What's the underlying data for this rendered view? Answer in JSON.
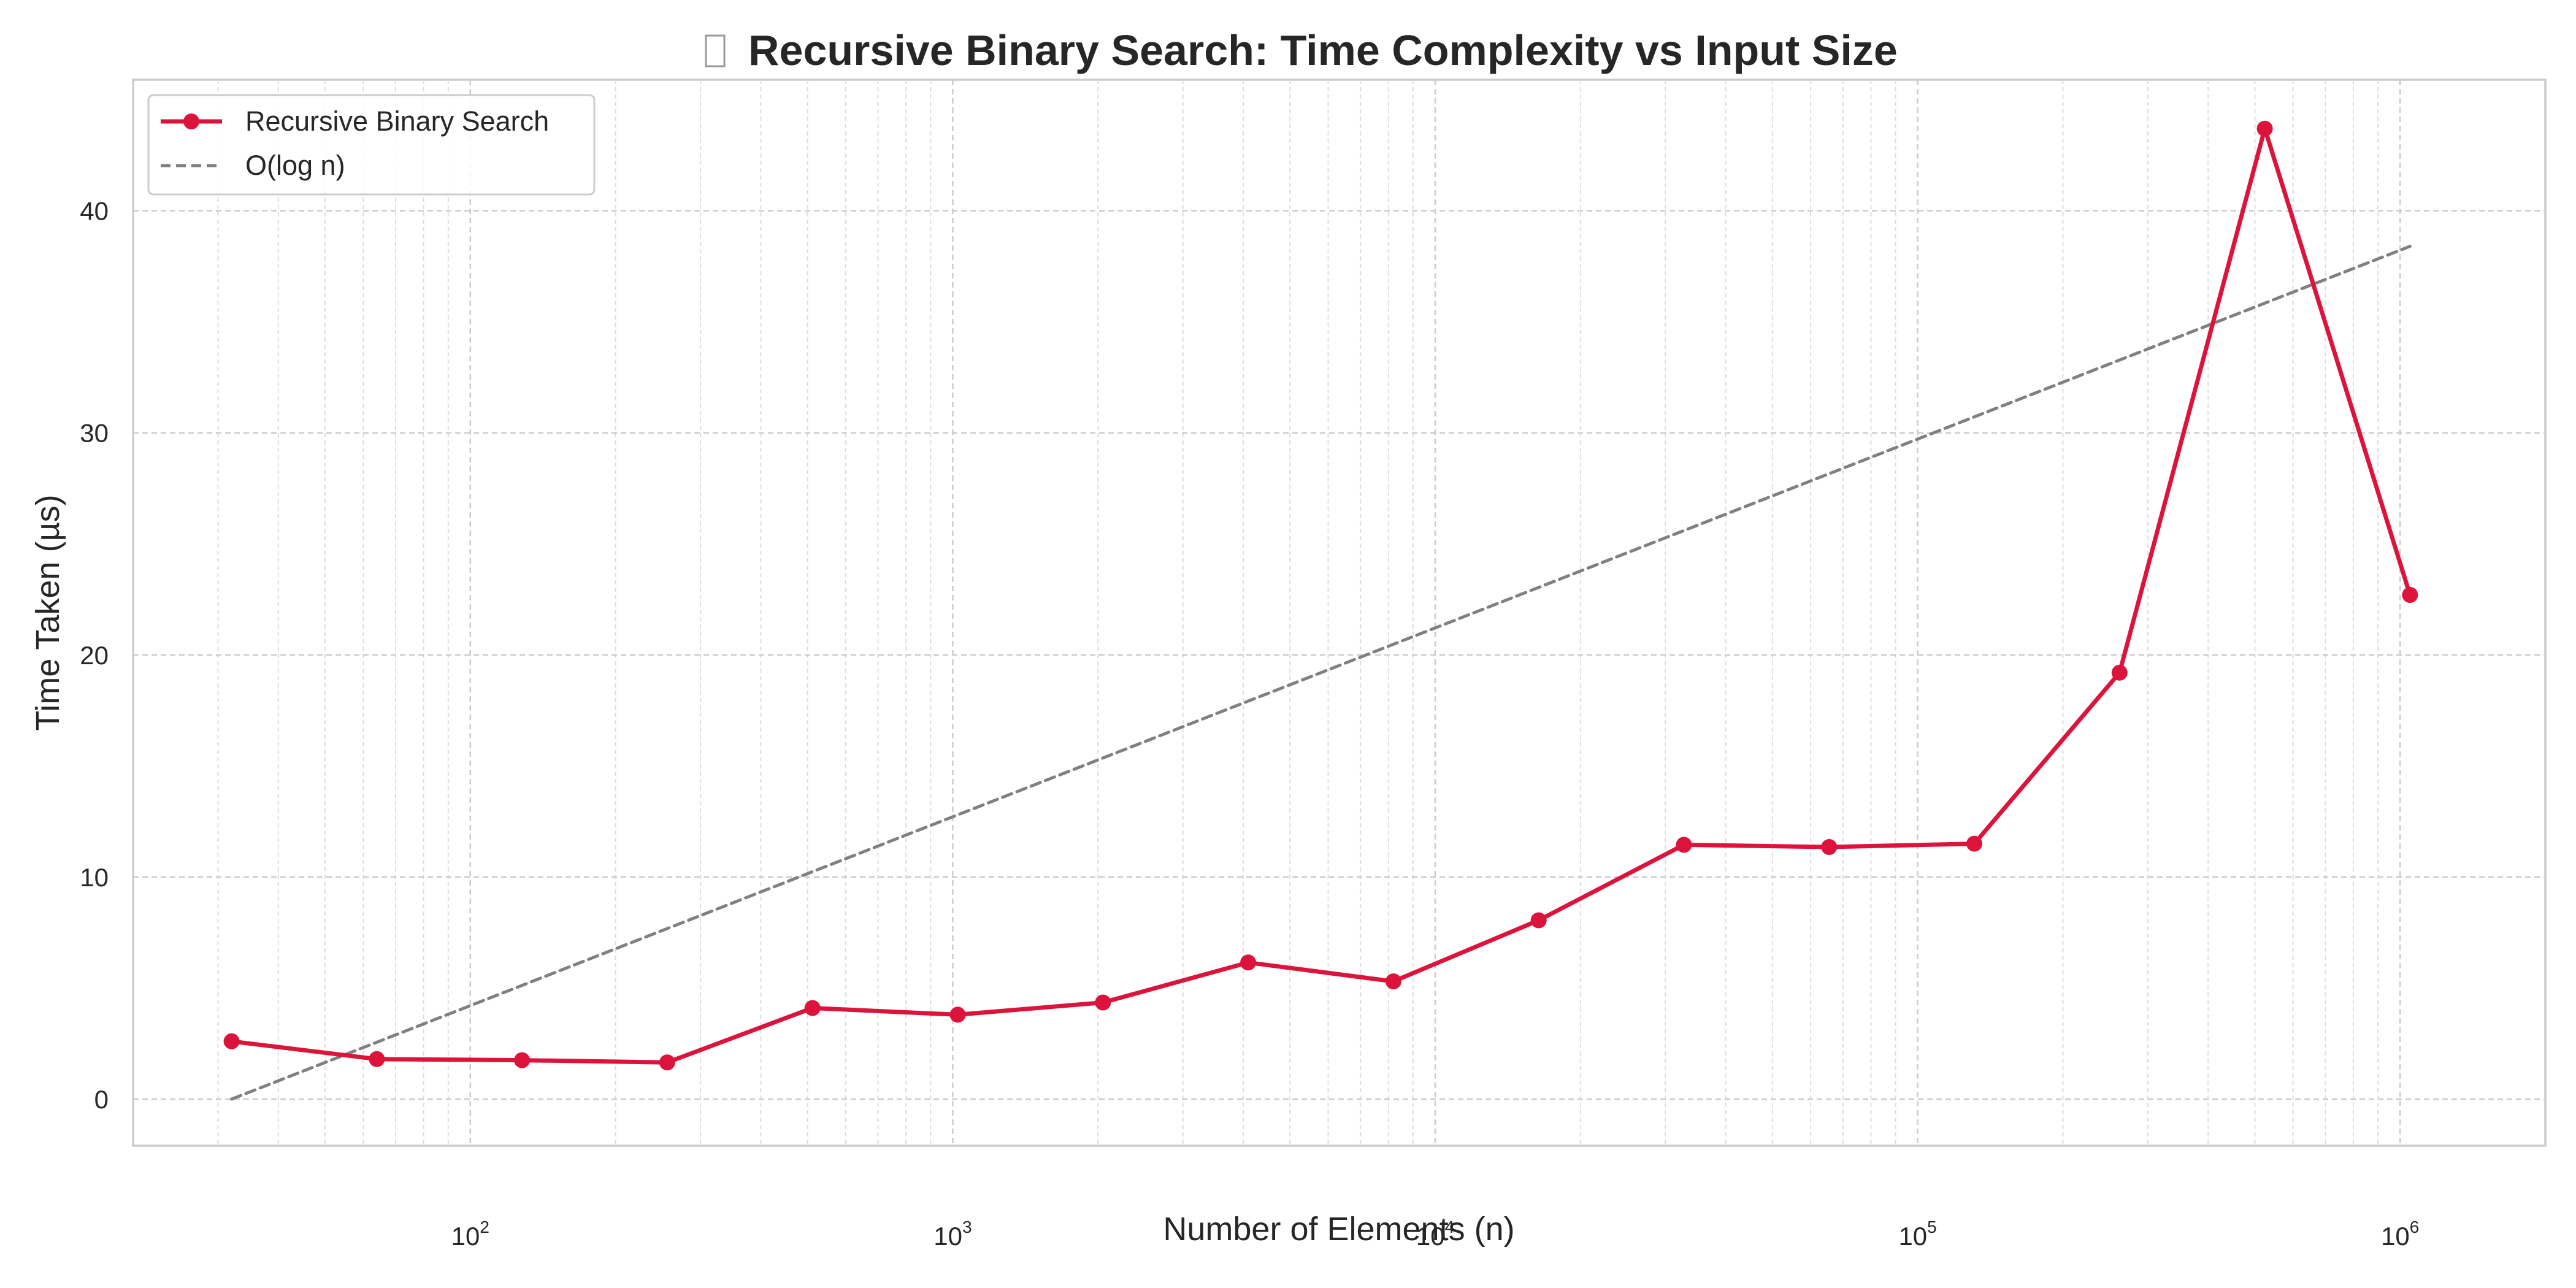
{
  "chart_data": {
    "type": "line",
    "title": "Recursive Binary Search: Time Complexity vs Input Size",
    "title_icon": "missing-glyph-icon",
    "xlabel": "Number of Elements (n)",
    "ylabel": "Time Taken (µs)",
    "xscale": "log",
    "xlim": [
      20,
      2000000
    ],
    "ylim": [
      -2.1,
      45.9
    ],
    "x_ticks": [
      {
        "value": 100,
        "base": "10",
        "exp": "2"
      },
      {
        "value": 1000,
        "base": "10",
        "exp": "3"
      },
      {
        "value": 10000,
        "base": "10",
        "exp": "4"
      },
      {
        "value": 100000,
        "base": "10",
        "exp": "5"
      },
      {
        "value": 1000000,
        "base": "10",
        "exp": "6"
      }
    ],
    "y_ticks": [
      0,
      10,
      20,
      30,
      40
    ],
    "grid": true,
    "legend_position": "top-left",
    "series": [
      {
        "name": "Recursive Binary Search",
        "color": "#dc143c",
        "style": "solid",
        "marker": "circle",
        "x": [
          32,
          64,
          128,
          256,
          512,
          1024,
          2048,
          4096,
          8192,
          16384,
          32768,
          65536,
          131072,
          262144,
          524288,
          1048576
        ],
        "y": [
          2.6,
          1.8,
          1.75,
          1.65,
          4.1,
          3.8,
          4.35,
          6.15,
          5.3,
          8.05,
          11.45,
          11.35,
          11.5,
          19.2,
          43.7,
          22.7
        ]
      },
      {
        "name": "O(log n)",
        "color": "#808080",
        "style": "dashed",
        "marker": "none",
        "x": [
          32,
          1048576
        ],
        "y": [
          0,
          38.4
        ]
      }
    ]
  }
}
